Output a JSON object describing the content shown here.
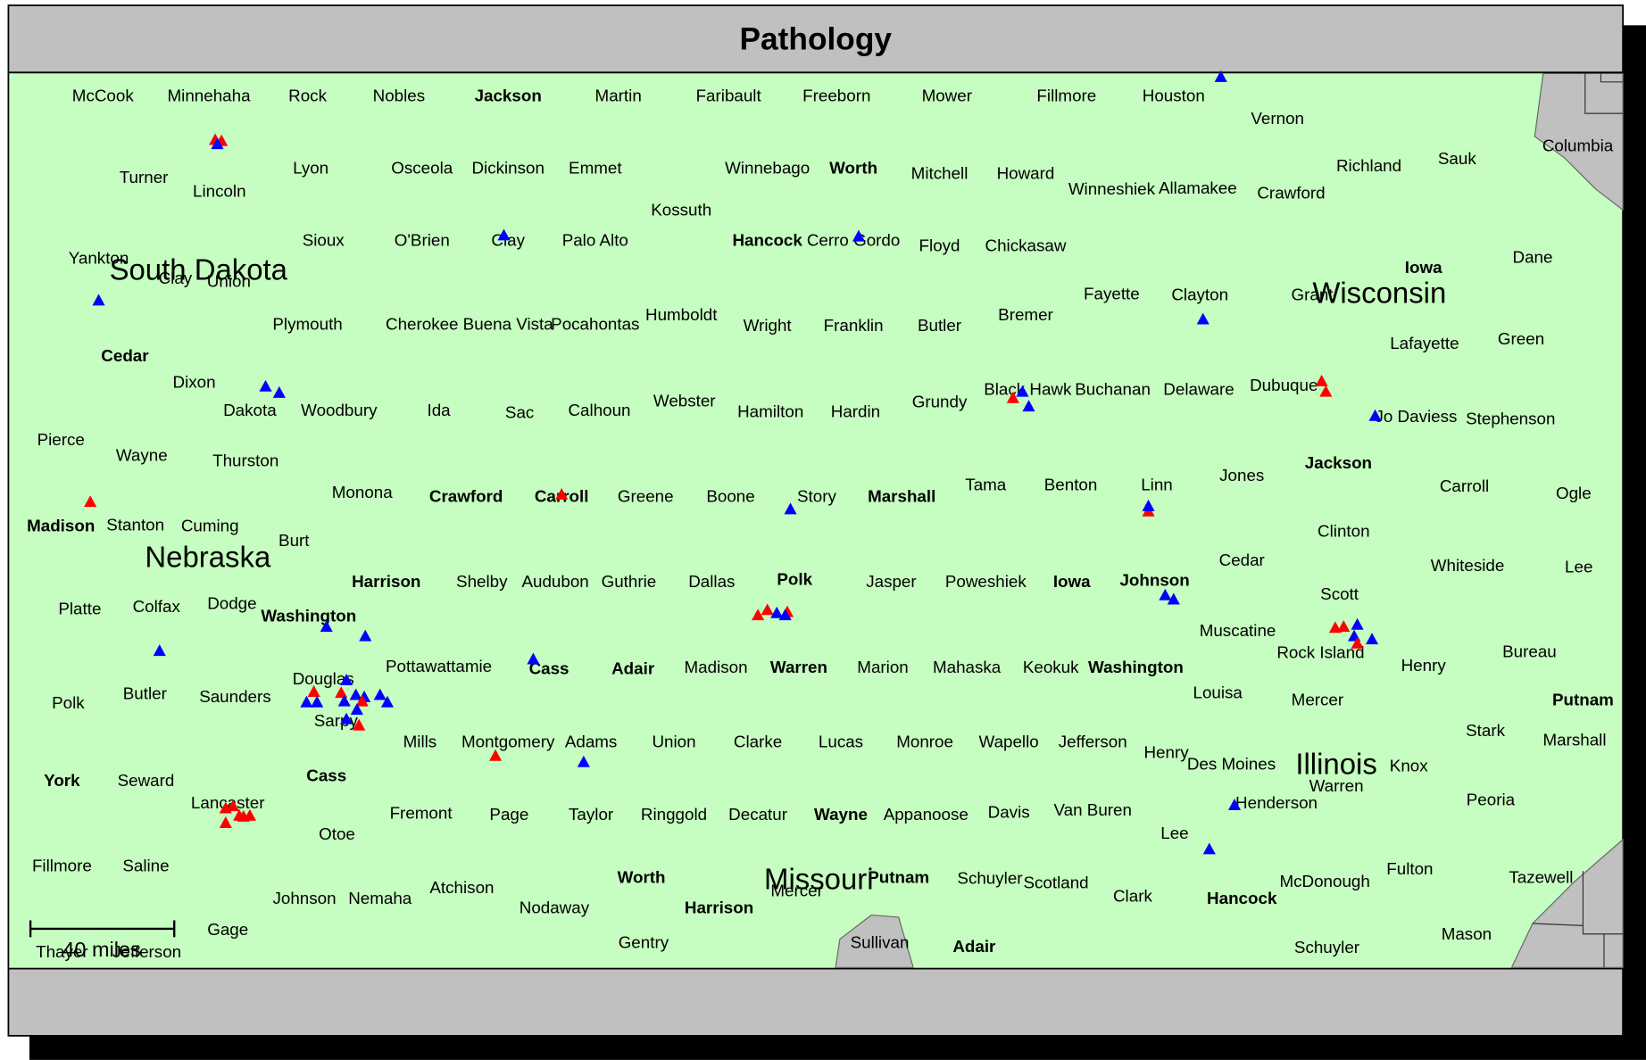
{
  "title": "Pathology",
  "labels": [
    "McCook",
    "Minnehaha",
    "Rock",
    "Nobles",
    "Jackson",
    "Martin",
    "Faribault",
    "Freeborn",
    "Mower",
    "Fillmore",
    "Houston",
    "Vernon",
    "Columbia",
    "Turner",
    "Lincoln",
    "Lyon",
    "Osceola",
    "Dickinson",
    "Emmet",
    "Winnebago",
    "Worth",
    "Mitchell",
    "Howard",
    "Winneshiek",
    "Allamakee",
    "Crawford",
    "Richland",
    "Sauk",
    "Kossuth",
    "Sioux",
    "O'Brien",
    "Clay",
    "Palo Alto",
    "Hancock",
    "Cerro Gordo",
    "Floyd",
    "Chickasaw",
    "Yankton",
    "Clay",
    "Union",
    "Dane",
    "Iowa",
    "Fayette",
    "Clayton",
    "Grant",
    "Plymouth",
    "Cherokee",
    "Buena Vista",
    "Pocahontas",
    "Humboldt",
    "Wright",
    "Franklin",
    "Butler",
    "Bremer",
    "Lafayette",
    "Green",
    "Cedar",
    "Dixon",
    "Dakota",
    "Woodbury",
    "Ida",
    "Sac",
    "Calhoun",
    "Webster",
    "Hamilton",
    "Hardin",
    "Grundy",
    "Black Hawk",
    "Buchanan",
    "Delaware",
    "Dubuque",
    "Jo Daviess",
    "Stephenson",
    "Pierce",
    "Wayne",
    "Thurston",
    "Jackson",
    "Jones",
    "Carroll",
    "Ogle",
    "Monona",
    "Crawford",
    "Carroll",
    "Greene",
    "Boone",
    "Story",
    "Marshall",
    "Tama",
    "Benton",
    "Linn",
    "Madison",
    "Stanton",
    "Cuming",
    "Burt",
    "Clinton",
    "Cedar",
    "Whiteside",
    "Lee",
    "Harrison",
    "Shelby",
    "Audubon",
    "Guthrie",
    "Dallas",
    "Polk",
    "Jasper",
    "Poweshiek",
    "Iowa",
    "Johnson",
    "Scott",
    "Platte",
    "Colfax",
    "Dodge",
    "Washington",
    "Muscatine",
    "Rock Island",
    "Bureau",
    "Henry",
    "Douglas",
    "Pottawattamie",
    "Cass",
    "Adair",
    "Madison",
    "Warren",
    "Marion",
    "Mahaska",
    "Keokuk",
    "Washington",
    "Polk",
    "Butler",
    "Saunders",
    "Sarpy",
    "Louisa",
    "Mercer",
    "Putnam",
    "Stark",
    "Marshall",
    "Mills",
    "Montgomery",
    "Adams",
    "Union",
    "Clarke",
    "Lucas",
    "Monroe",
    "Wapello",
    "Jefferson",
    "Henry",
    "Des Moines",
    "Knox",
    "Warren",
    "York",
    "Seward",
    "Cass",
    "Lancaster",
    "Fremont",
    "Page",
    "Taylor",
    "Ringgold",
    "Decatur",
    "Wayne",
    "Appanoose",
    "Davis",
    "Van Buren",
    "Henderson",
    "Peoria",
    "Otoe",
    "Lee",
    "Fillmore",
    "Saline",
    "Worth",
    "Putnam",
    "Schuyler",
    "Scotland",
    "Clark",
    "Hancock",
    "McDonough",
    "Fulton",
    "Tazewell",
    "Johnson",
    "Nemaha",
    "Atchison",
    "Nodaway",
    "Harrison",
    "Mercer",
    "Gage",
    "Mason",
    "Thayer",
    "Jefferson",
    "Gentry",
    "Sullivan",
    "Adair",
    "Schuyler"
  ],
  "state_labels": [
    "South Dakota",
    "Nebraska",
    "Wisconsin",
    "Illinois",
    "Missouri"
  ],
  "scale_label": "40 miles"
}
